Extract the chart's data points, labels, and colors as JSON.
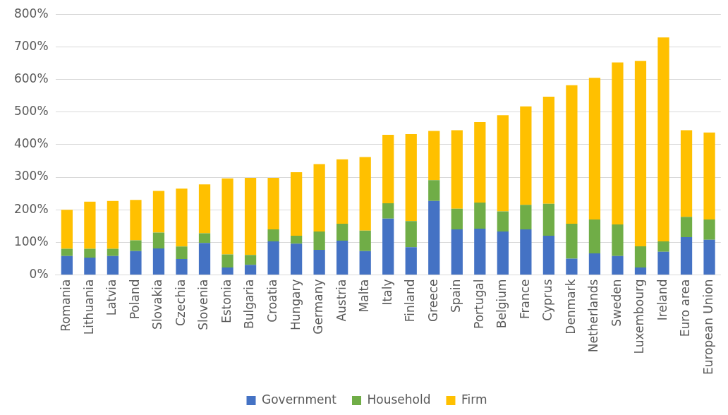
{
  "chart_data": {
    "type": "bar",
    "stacked": true,
    "categories": [
      "Romania",
      "Lithuania",
      "Latvia",
      "Poland",
      "Slovakia",
      "Czechia",
      "Slovenia",
      "Estonia",
      "Bulgaria",
      "Croatia",
      "Hungary",
      "Germany",
      "Austria",
      "Malta",
      "Italy",
      "Finland",
      "Greece",
      "Spain",
      "Portugal",
      "Belgium",
      "France",
      "Cyprus",
      "Denmark",
      "Netherlands",
      "Sweden",
      "Luxembourg",
      "Ireland",
      "Euro area",
      "European Union"
    ],
    "series": [
      {
        "name": "Government",
        "color": "#4472c4",
        "values": [
          58,
          53,
          58,
          73,
          81,
          49,
          98,
          23,
          31,
          103,
          96,
          77,
          105,
          73,
          173,
          85,
          227,
          140,
          142,
          133,
          140,
          120,
          50,
          66,
          58,
          23,
          71,
          116,
          108
        ]
      },
      {
        "name": "Household",
        "color": "#70ad47",
        "values": [
          22,
          27,
          22,
          33,
          49,
          38,
          30,
          40,
          30,
          37,
          24,
          56,
          52,
          63,
          47,
          80,
          64,
          63,
          80,
          62,
          75,
          98,
          107,
          104,
          97,
          65,
          32,
          62,
          62
        ]
      },
      {
        "name": "Firm",
        "color": "#ffc000",
        "values": [
          120,
          145,
          147,
          124,
          128,
          178,
          150,
          233,
          237,
          158,
          195,
          207,
          198,
          226,
          210,
          267,
          151,
          241,
          247,
          295,
          302,
          329,
          425,
          435,
          497,
          569,
          626,
          266,
          267
        ]
      }
    ],
    "ylim": [
      0,
      800
    ],
    "yticks": [
      {
        "value": 0,
        "label": "0%"
      },
      {
        "value": 100,
        "label": "100%"
      },
      {
        "value": 200,
        "label": "200%"
      },
      {
        "value": 300,
        "label": "300%"
      },
      {
        "value": 400,
        "label": "400%"
      },
      {
        "value": 500,
        "label": "500%"
      },
      {
        "value": 600,
        "label": "600%"
      },
      {
        "value": 700,
        "label": "700%"
      },
      {
        "value": 800,
        "label": "800%"
      }
    ],
    "grid": "y",
    "legend": "bottom"
  }
}
